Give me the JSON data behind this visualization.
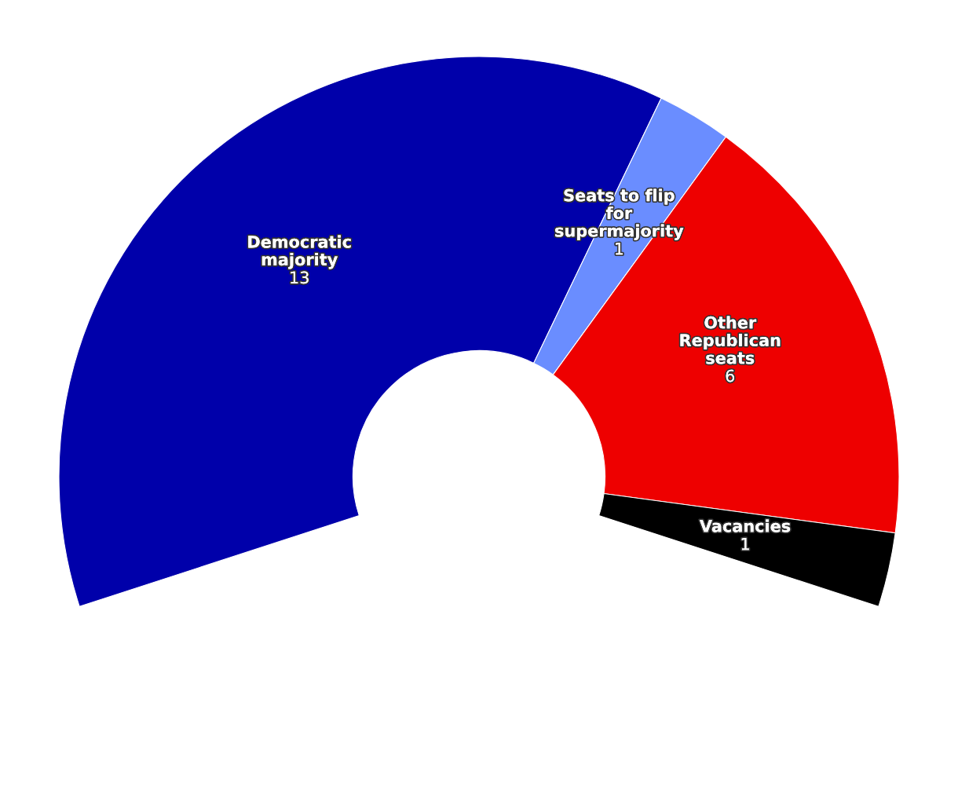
{
  "chart_data": {
    "type": "donut",
    "categories": [
      "Democratic majority",
      "Seats to flip for supermajority",
      "Other Republican seats",
      "Vacancies"
    ],
    "values": [
      13,
      1,
      6,
      1
    ],
    "colors": [
      "#0000aa",
      "#6a8dff",
      "#ee0000",
      "#000000"
    ],
    "data_labels": true
  }
}
